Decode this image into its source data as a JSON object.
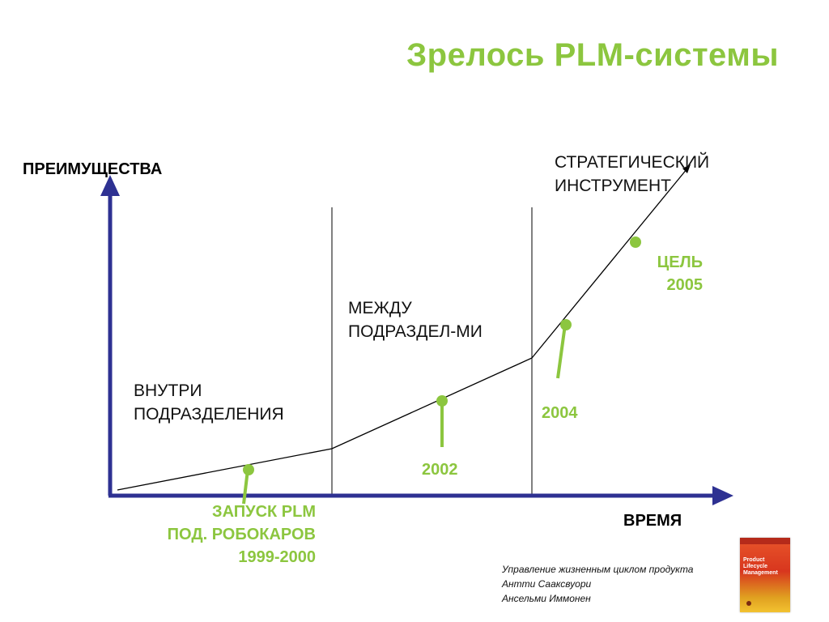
{
  "title": "Зрелось PLM-системы",
  "axes": {
    "y_label": "ПРЕИМУЩЕСТВА",
    "x_label": "ВРЕМЯ"
  },
  "zones": {
    "zone1": [
      "ВНУТРИ",
      "ПОДРАЗДЕЛЕНИЯ"
    ],
    "zone2": [
      "МЕЖДУ",
      "ПОДРАЗДЕЛ-МИ"
    ],
    "zone3": [
      "СТРАТЕГИЧЕСКИЙ",
      "ИНСТРУМЕНТ"
    ]
  },
  "milestones": {
    "launch": [
      "ЗАПУСК PLM",
      "ПОД. РОБОКАРОВ",
      "1999-2000"
    ],
    "m2002": "2002",
    "m2004": "2004",
    "goal": [
      "ЦЕЛЬ",
      "2005"
    ]
  },
  "credits": [
    "Управление жизненным циклом продукта",
    "Антти Сааксвуори",
    "Ансельми Иммонен"
  ],
  "book_cover": {
    "title": "Product Lifecycle Management"
  },
  "colors": {
    "accent_green": "#8cc63f",
    "axis_blue": "#2e3192",
    "curve": "#000000"
  }
}
